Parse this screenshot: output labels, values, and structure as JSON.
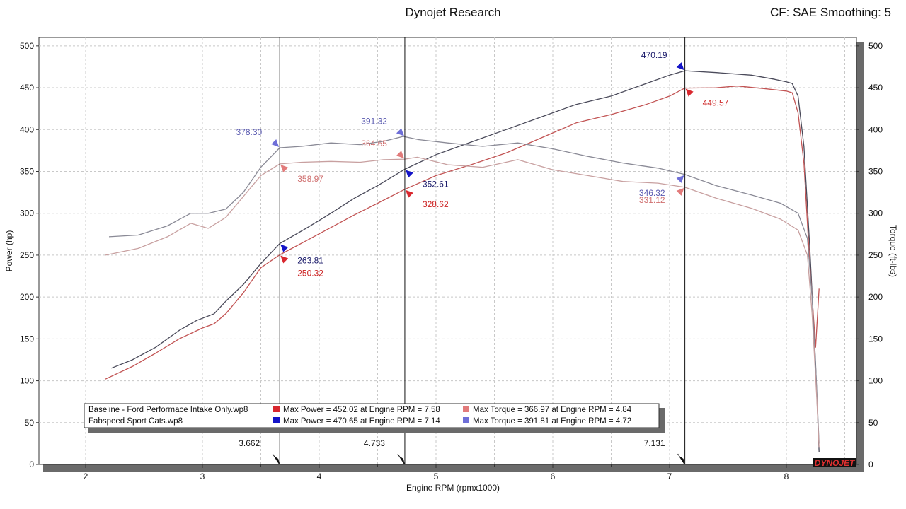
{
  "header": {
    "title": "Dynojet Research",
    "cf_label": "CF: SAE Smoothing: 5"
  },
  "colors": {
    "baseline_power": "#d9282f",
    "baseline_torque": "#e27b7b",
    "fabspeed_power": "#1414c8",
    "fabspeed_torque": "#6f6fd8",
    "trace_baseline": "#c25454",
    "trace_fabspeed": "#4a4a5a",
    "torque_trace_baseline": "#c8a0a0",
    "torque_trace_fabspeed": "#8a8a96"
  },
  "chart_data": {
    "type": "line",
    "xlabel": "Engine RPM (rpmx1000)",
    "ylabel_left": "Power (hp)",
    "ylabel_right": "Torque (ft-lbs)",
    "xlim": [
      1.6,
      8.6
    ],
    "ylim": [
      0,
      510
    ],
    "x_ticks": [
      "2",
      "3",
      "4",
      "5",
      "6",
      "7",
      "8"
    ],
    "y_ticks": [
      "0",
      "50",
      "100",
      "150",
      "200",
      "250",
      "300",
      "350",
      "400",
      "450",
      "500"
    ],
    "grid": true,
    "legend": {
      "placement": "bottom-left",
      "runs": [
        {
          "file": "Baseline - Ford Performace Intake Only.wp8",
          "max_power": "Max Power = 452.02 at Engine RPM = 7.58",
          "max_torque": "Max Torque = 366.97 at Engine RPM = 4.84"
        },
        {
          "file": "Fabspeed Sport Cats.wp8",
          "max_power": "Max Power = 470.65 at Engine RPM = 7.14",
          "max_torque": "Max Torque = 391.81 at Engine RPM = 4.72"
        }
      ]
    },
    "cursors": [
      {
        "rpm": 3.662,
        "label": "3.662"
      },
      {
        "rpm": 4.733,
        "label": "4.733"
      },
      {
        "rpm": 7.131,
        "label": "7.131"
      }
    ],
    "annotations": [
      {
        "rpm": 3.662,
        "value": 378.3,
        "label": "378.30",
        "series": "fabspeed_torque"
      },
      {
        "rpm": 3.662,
        "value": 358.97,
        "label": "358.97",
        "series": "baseline_torque"
      },
      {
        "rpm": 3.662,
        "value": 263.81,
        "label": "263.81",
        "series": "fabspeed_power"
      },
      {
        "rpm": 3.662,
        "value": 250.32,
        "label": "250.32",
        "series": "baseline_power"
      },
      {
        "rpm": 4.733,
        "value": 391.32,
        "label": "391.32",
        "series": "fabspeed_torque"
      },
      {
        "rpm": 4.733,
        "value": 364.65,
        "label": "364.65",
        "series": "baseline_torque"
      },
      {
        "rpm": 4.733,
        "value": 352.61,
        "label": "352.61",
        "series": "fabspeed_power"
      },
      {
        "rpm": 4.733,
        "value": 328.62,
        "label": "328.62",
        "series": "baseline_power"
      },
      {
        "rpm": 7.131,
        "value": 470.19,
        "label": "470.19",
        "series": "fabspeed_power"
      },
      {
        "rpm": 7.131,
        "value": 449.57,
        "label": "449.57",
        "series": "baseline_power"
      },
      {
        "rpm": 7.131,
        "value": 346.32,
        "label": "346.32",
        "series": "fabspeed_torque"
      },
      {
        "rpm": 7.131,
        "value": 331.12,
        "label": "331.12",
        "series": "baseline_torque"
      }
    ],
    "series": [
      {
        "key": "fabspeed_power",
        "axis": "power",
        "x": [
          2.22,
          2.4,
          2.6,
          2.8,
          2.95,
          3.1,
          3.2,
          3.35,
          3.5,
          3.662,
          3.9,
          4.1,
          4.3,
          4.5,
          4.733,
          5.0,
          5.3,
          5.6,
          5.9,
          6.2,
          6.5,
          6.8,
          7.0,
          7.131,
          7.4,
          7.7,
          7.9,
          8.0,
          8.05,
          8.1,
          8.15,
          8.2,
          8.25,
          8.28
        ],
        "y": [
          115,
          125,
          140,
          160,
          172,
          180,
          195,
          215,
          240,
          263.81,
          283,
          300,
          318,
          333,
          352.61,
          370,
          385,
          400,
          415,
          430,
          440,
          455,
          465,
          470.19,
          468,
          465,
          460,
          457,
          455,
          440,
          380,
          260,
          120,
          15
        ]
      },
      {
        "key": "baseline_power",
        "axis": "power",
        "x": [
          2.17,
          2.4,
          2.6,
          2.8,
          3.0,
          3.1,
          3.2,
          3.35,
          3.5,
          3.662,
          3.9,
          4.1,
          4.3,
          4.5,
          4.733,
          5.0,
          5.3,
          5.6,
          5.9,
          6.2,
          6.5,
          6.8,
          7.0,
          7.131,
          7.4,
          7.58,
          7.8,
          8.0,
          8.05,
          8.1,
          8.15,
          8.2,
          8.25,
          8.28
        ],
        "y": [
          102,
          117,
          133,
          150,
          163,
          168,
          180,
          205,
          235,
          250.32,
          268,
          283,
          298,
          312,
          328.62,
          345,
          358,
          372,
          390,
          408,
          418,
          430,
          440,
          449.57,
          450,
          452.02,
          449,
          446,
          444,
          420,
          360,
          240,
          140,
          210
        ]
      },
      {
        "key": "fabspeed_torque",
        "axis": "torque",
        "x": [
          2.2,
          2.45,
          2.7,
          2.9,
          3.05,
          3.2,
          3.35,
          3.5,
          3.662,
          3.85,
          4.1,
          4.35,
          4.55,
          4.72,
          4.85,
          5.1,
          5.4,
          5.7,
          6.0,
          6.3,
          6.6,
          6.9,
          7.131,
          7.4,
          7.7,
          7.95,
          8.1,
          8.18,
          8.22,
          8.26,
          8.28
        ],
        "y": [
          272,
          274,
          285,
          300,
          300,
          305,
          325,
          355,
          378.3,
          380,
          384,
          382,
          386,
          391.81,
          388,
          384,
          380,
          384,
          377,
          368,
          360,
          354,
          346.32,
          333,
          322,
          312,
          300,
          270,
          200,
          90,
          25
        ]
      },
      {
        "key": "baseline_torque",
        "axis": "torque",
        "x": [
          2.17,
          2.45,
          2.7,
          2.9,
          3.05,
          3.2,
          3.35,
          3.5,
          3.662,
          3.85,
          4.1,
          4.35,
          4.55,
          4.733,
          4.84,
          5.1,
          5.4,
          5.7,
          6.0,
          6.3,
          6.6,
          6.9,
          7.131,
          7.4,
          7.7,
          7.95,
          8.1,
          8.18,
          8.22,
          8.26,
          8.28
        ],
        "y": [
          250,
          258,
          272,
          288,
          282,
          295,
          320,
          345,
          358.97,
          361,
          362,
          361,
          364,
          364.65,
          366.97,
          358,
          355,
          364,
          352,
          345,
          338,
          336,
          331.12,
          318,
          306,
          293,
          280,
          250,
          180,
          80,
          20
        ]
      }
    ]
  },
  "logo": {
    "name": "DYNOJET"
  }
}
